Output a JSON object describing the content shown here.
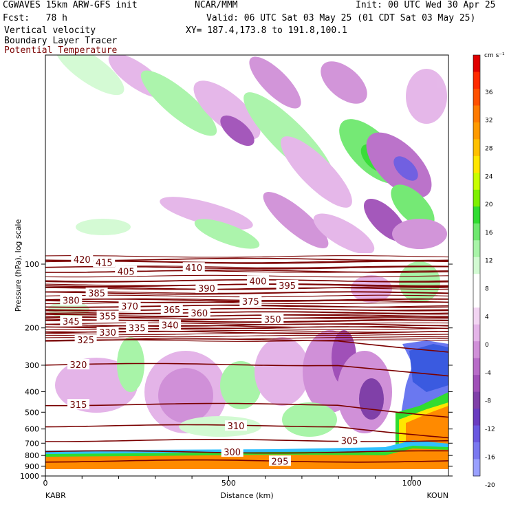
{
  "header": {
    "model": "CGWAVES 15km ARW-GFS init",
    "agency": "NCAR/MMM",
    "init": "Init: 00 UTC Wed 30 Apr 25",
    "fcst": "Fcst:   78 h",
    "valid": "Valid: 06 UTC Sat 03 May 25 (01 CDT Sat 03 May 25)",
    "field1": "Vertical velocity",
    "field2": "Boundary Layer Tracer",
    "field3": "Potential Temperature",
    "xy": "XY= 187.4,173.8 to 191.8,100.1"
  },
  "colors": {
    "theta_line": "#7a0000",
    "field3_text": "#7a0000"
  },
  "chart_data": {
    "type": "cross-section contour",
    "xlabel": "Distance (km)",
    "ylabel": "Pressure (hPa), log scale",
    "x_start_label": "KABR",
    "x_end_label": "KOUN",
    "xlim": [
      0,
      1100
    ],
    "x_ticks": [
      0,
      500,
      1000
    ],
    "y_ticks": [
      100,
      200,
      300,
      400,
      500,
      600,
      700,
      800,
      900,
      1000
    ],
    "y_log_scale": true,
    "colorbar": {
      "units": "cm s⁻¹",
      "ticks": [
        36,
        32,
        28,
        24,
        20,
        16,
        12,
        8,
        4,
        0,
        -4,
        -8,
        -12,
        -16,
        -20
      ],
      "colors": [
        "#e00000",
        "#ff2a00",
        "#ff5000",
        "#ff7a00",
        "#ff9a00",
        "#ffc000",
        "#ffe600",
        "#c8ff00",
        "#7df000",
        "#30dc30",
        "#6ee86e",
        "#a8f4a8",
        "#d2fad2",
        "#ffffff",
        "#ffffff",
        "#f2d4f2",
        "#e4b4e8",
        "#d090d8",
        "#b86cc8",
        "#a050b8",
        "#8040a8",
        "#6a3cc0",
        "#6a58e0",
        "#7a78f0",
        "#9aa0ff"
      ]
    },
    "theta_labels": [
      {
        "v": "420",
        "x": 100,
        "p": 95
      },
      {
        "v": "415",
        "x": 160,
        "p": 98
      },
      {
        "v": "410",
        "x": 405,
        "p": 104
      },
      {
        "v": "405",
        "x": 220,
        "p": 108
      },
      {
        "v": "400",
        "x": 580,
        "p": 120
      },
      {
        "v": "395",
        "x": 660,
        "p": 126
      },
      {
        "v": "390",
        "x": 440,
        "p": 130
      },
      {
        "v": "385",
        "x": 140,
        "p": 137
      },
      {
        "v": "380",
        "x": 70,
        "p": 148
      },
      {
        "v": "375",
        "x": 560,
        "p": 150
      },
      {
        "v": "370",
        "x": 230,
        "p": 158
      },
      {
        "v": "365",
        "x": 345,
        "p": 164
      },
      {
        "v": "360",
        "x": 420,
        "p": 170
      },
      {
        "v": "355",
        "x": 170,
        "p": 176
      },
      {
        "v": "350",
        "x": 620,
        "p": 182
      },
      {
        "v": "345",
        "x": 70,
        "p": 186
      },
      {
        "v": "340",
        "x": 340,
        "p": 194
      },
      {
        "v": "335",
        "x": 250,
        "p": 200
      },
      {
        "v": "330",
        "x": 170,
        "p": 210
      },
      {
        "v": "325",
        "x": 110,
        "p": 228
      },
      {
        "v": "320",
        "x": 90,
        "p": 298
      },
      {
        "v": "315",
        "x": 90,
        "p": 460
      },
      {
        "v": "310",
        "x": 520,
        "p": 580
      },
      {
        "v": "305",
        "x": 830,
        "p": 680
      },
      {
        "v": "300",
        "x": 510,
        "p": 770
      },
      {
        "v": "295",
        "x": 640,
        "p": 850
      }
    ]
  }
}
